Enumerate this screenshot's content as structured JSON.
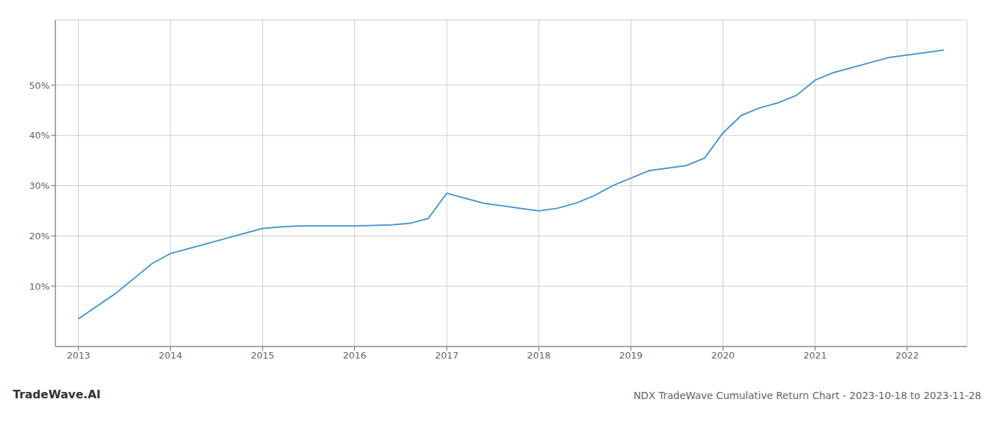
{
  "chart_data": {
    "type": "line",
    "title": "NDX TradeWave Cumulative Return Chart - 2023-10-18 to 2023-11-28",
    "annotations": [
      "TradeWave.AI"
    ],
    "x": [
      2013.0,
      2013.08,
      2013.2,
      2013.4,
      2013.6,
      2013.8,
      2014.0,
      2014.2,
      2014.4,
      2014.6,
      2014.8,
      2015.0,
      2015.2,
      2015.4,
      2015.6,
      2015.8,
      2016.0,
      2016.2,
      2016.4,
      2016.6,
      2016.8,
      2017.0,
      2017.2,
      2017.4,
      2017.6,
      2017.8,
      2018.0,
      2018.2,
      2018.4,
      2018.6,
      2018.8,
      2019.0,
      2019.2,
      2019.4,
      2019.6,
      2019.8,
      2020.0,
      2020.2,
      2020.4,
      2020.6,
      2020.8,
      2021.0,
      2021.2,
      2021.4,
      2021.6,
      2021.8,
      2022.0,
      2022.2,
      2022.4
    ],
    "values": [
      3.5,
      4.5,
      6.0,
      8.5,
      11.5,
      14.5,
      16.5,
      17.5,
      18.5,
      19.5,
      20.5,
      21.5,
      21.8,
      22.0,
      22.0,
      22.0,
      22.0,
      22.1,
      22.2,
      22.5,
      23.5,
      28.5,
      27.5,
      26.5,
      26.0,
      25.5,
      25.0,
      25.5,
      26.5,
      28.0,
      30.0,
      31.5,
      33.0,
      33.5,
      34.0,
      35.5,
      40.5,
      44.0,
      45.5,
      46.5,
      48.0,
      51.0,
      52.5,
      53.5,
      54.5,
      55.5,
      56.0,
      56.5,
      57.0
    ],
    "color": "#4d96c9",
    "xlim": [
      2012.75,
      2022.65
    ],
    "ylim": [
      -2,
      63
    ],
    "xticks": [
      2013,
      2014,
      2015,
      2016,
      2017,
      2018,
      2019,
      2020,
      2021,
      2022
    ],
    "yticks": [
      {
        "value": 10,
        "label": "10%"
      },
      {
        "value": 20,
        "label": "20%"
      },
      {
        "value": 30,
        "label": "30%"
      },
      {
        "value": 40,
        "label": "40%"
      },
      {
        "value": 50,
        "label": "50%"
      }
    ],
    "grid": true
  }
}
